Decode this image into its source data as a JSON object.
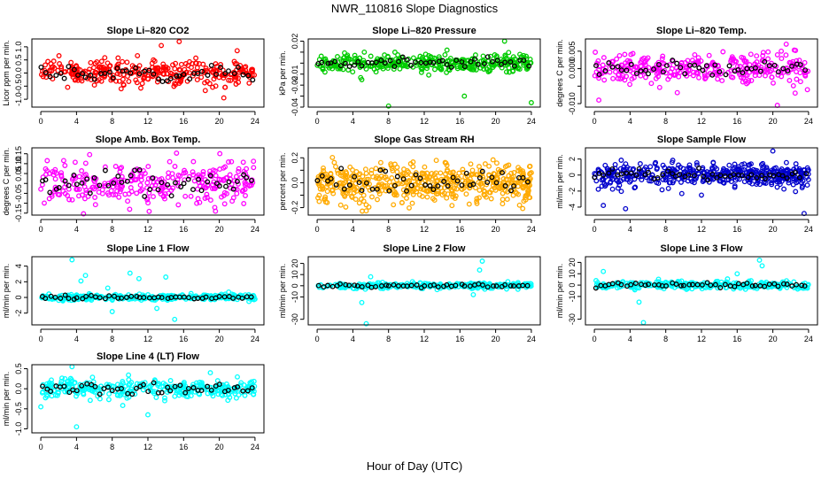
{
  "figure_title": "NWR_110816  Slope Diagnostics",
  "x_axis_title": "Hour of Day (UTC)",
  "overlay_color": "#000000",
  "chart_data": [
    {
      "type": "scatter",
      "title": "Slope Li–820 CO2",
      "ylabel": "Licor ppm per min.",
      "color": "#ff0000",
      "xlim": [
        -1,
        25
      ],
      "ylim": [
        -1.3,
        1.3
      ],
      "xticks": [
        0,
        4,
        8,
        12,
        16,
        20,
        24
      ],
      "yticks": [
        -1.0,
        -0.5,
        0.0,
        0.5,
        1.0
      ],
      "ytick_labels": [
        "-1.0",
        "-0.5",
        "0.0",
        "0.5",
        "1.0"
      ],
      "n_points": 320,
      "spread": 0.32,
      "outliers": [
        [
          13.5,
          1.05
        ],
        [
          15.5,
          1.2
        ],
        [
          20.5,
          -0.95
        ],
        [
          22,
          0.85
        ],
        [
          9,
          -0.6
        ]
      ]
    },
    {
      "type": "scatter",
      "title": "Slope Li–820 Pressure",
      "ylabel": "kPa per min.",
      "color": "#00cc00",
      "xlim": [
        -1,
        25
      ],
      "ylim": [
        -0.04,
        0.022
      ],
      "xticks": [
        0,
        4,
        8,
        12,
        16,
        20,
        24
      ],
      "yticks": [
        -0.04,
        -0.03,
        -0.02,
        -0.01,
        0.0,
        0.01,
        0.02
      ],
      "ytick_labels": [
        "-0.04",
        "",
        "-0.02",
        "-0.01",
        "",
        "",
        "0.02"
      ],
      "n_points": 340,
      "spread": 0.005,
      "outliers": [
        [
          8,
          -0.039
        ],
        [
          16.5,
          -0.03
        ],
        [
          21,
          0.02
        ],
        [
          24,
          -0.036
        ],
        [
          5,
          -0.015
        ]
      ]
    },
    {
      "type": "scatter",
      "title": "Slope Li–820 Temp.",
      "ylabel": "degrees C per min.",
      "color": "#ff00ff",
      "xlim": [
        -1,
        25
      ],
      "ylim": [
        -0.011,
        0.0085
      ],
      "xticks": [
        0,
        4,
        8,
        12,
        16,
        20,
        24
      ],
      "yticks": [
        -0.01,
        -0.005,
        0.0,
        0.005
      ],
      "ytick_labels": [
        "-0.010",
        "",
        "0.000",
        "0.005"
      ],
      "n_points": 300,
      "spread": 0.0028,
      "outliers": [
        [
          20.5,
          -0.0105
        ],
        [
          21.5,
          0.007
        ],
        [
          0.5,
          -0.009
        ],
        [
          22.5,
          -0.007
        ]
      ]
    },
    {
      "type": "scatter",
      "title": "Slope Amb. Box Temp.",
      "ylabel": "degrees C per min.",
      "color": "#ff00ff",
      "xlim": [
        -1,
        25
      ],
      "ylim": [
        -0.16,
        0.18
      ],
      "xticks": [
        0,
        4,
        8,
        12,
        16,
        20,
        24
      ],
      "yticks": [
        -0.15,
        -0.1,
        -0.05,
        0.0,
        0.05,
        0.1,
        0.15
      ],
      "ytick_labels": [
        "-0.15",
        "",
        "-0.05",
        "",
        "0.05",
        "0.10",
        "0.15"
      ],
      "n_points": 300,
      "spread": 0.065,
      "outliers": []
    },
    {
      "type": "scatter",
      "title": "Slope Gas Stream RH",
      "ylabel": "percent per min.",
      "color": "#ffaa00",
      "xlim": [
        -1,
        25
      ],
      "ylim": [
        -0.26,
        0.28
      ],
      "xticks": [
        0,
        4,
        8,
        12,
        16,
        20,
        24
      ],
      "yticks": [
        -0.2,
        -0.1,
        0.0,
        0.1,
        0.2
      ],
      "ytick_labels": [
        "-0.2",
        "",
        "0.0",
        "",
        "0.2"
      ],
      "n_points": 520,
      "spread": 0.1,
      "outliers": []
    },
    {
      "type": "scatter",
      "title": "Slope Sample Flow",
      "ylabel": "ml/min per min.",
      "color": "#0000cc",
      "xlim": [
        -1,
        25
      ],
      "ylim": [
        -5,
        3.4
      ],
      "xticks": [
        0,
        4,
        8,
        12,
        16,
        20,
        24
      ],
      "yticks": [
        -4,
        -2,
        0,
        2
      ],
      "ytick_labels": [
        "-4",
        "-2",
        "0",
        "2"
      ],
      "n_points": 440,
      "spread": 0.9,
      "outliers": [
        [
          1,
          -3.8
        ],
        [
          3.5,
          -4.2
        ],
        [
          20,
          3
        ],
        [
          23.5,
          -4.8
        ],
        [
          12,
          -2.5
        ]
      ]
    },
    {
      "type": "scatter",
      "title": "Slope Line 1 Flow",
      "ylabel": "ml/min per min.",
      "color": "#00ffff",
      "xlim": [
        -1,
        25
      ],
      "ylim": [
        -3.5,
        5.2
      ],
      "xticks": [
        0,
        4,
        8,
        12,
        16,
        20,
        24
      ],
      "yticks": [
        -2,
        0,
        2,
        4
      ],
      "ytick_labels": [
        "-2",
        "0",
        "2",
        "4"
      ],
      "n_points": 300,
      "spread": 0.25,
      "outliers": [
        [
          3.5,
          4.8
        ],
        [
          5,
          2.8
        ],
        [
          10,
          3.1
        ],
        [
          11,
          2.4
        ],
        [
          14,
          2.6
        ],
        [
          15,
          -2.8
        ],
        [
          8,
          -1.8
        ],
        [
          13,
          -1.4
        ],
        [
          4.5,
          2.1
        ],
        [
          7.5,
          1.2
        ]
      ]
    },
    {
      "type": "scatter",
      "title": "Slope Line 2 Flow",
      "ylabel": "ml/min per min.",
      "color": "#00ffff",
      "xlim": [
        -1,
        25
      ],
      "ylim": [
        -35,
        26
      ],
      "xticks": [
        0,
        4,
        8,
        12,
        16,
        20,
        24
      ],
      "yticks": [
        -30,
        -10,
        0,
        10,
        20
      ],
      "ytick_labels": [
        "-30",
        "-10",
        "0",
        "10",
        "20"
      ],
      "n_points": 300,
      "spread": 1.6,
      "outliers": [
        [
          5.5,
          -34
        ],
        [
          18.5,
          22
        ],
        [
          18.2,
          14
        ],
        [
          5,
          -15
        ],
        [
          17.5,
          -8
        ],
        [
          6,
          8
        ]
      ]
    },
    {
      "type": "scatter",
      "title": "Slope Line 3 Flow",
      "ylabel": "ml/min per min.",
      "color": "#00ffff",
      "xlim": [
        -1,
        25
      ],
      "ylim": [
        -35,
        25
      ],
      "xticks": [
        0,
        4,
        8,
        12,
        16,
        20,
        24
      ],
      "yticks": [
        -30,
        -10,
        0,
        10,
        20
      ],
      "ytick_labels": [
        "-30",
        "-10",
        "0",
        "10",
        "20"
      ],
      "n_points": 300,
      "spread": 2.2,
      "outliers": [
        [
          5.5,
          -33
        ],
        [
          18.5,
          22
        ],
        [
          18.8,
          17
        ],
        [
          5,
          -15
        ],
        [
          16,
          10
        ],
        [
          1,
          12
        ]
      ]
    },
    {
      "type": "scatter",
      "title": "Slope Line 4 (LT) Flow",
      "ylabel": "ml/min per min.",
      "color": "#00ffff",
      "xlim": [
        -1,
        25
      ],
      "ylim": [
        -1.1,
        0.6
      ],
      "xticks": [
        0,
        4,
        8,
        12,
        16,
        20,
        24
      ],
      "yticks": [
        -1.0,
        -0.5,
        0.0,
        0.5
      ],
      "ytick_labels": [
        "-1.0",
        "-0.5",
        "0.0",
        "0.5"
      ],
      "n_points": 320,
      "spread": 0.14,
      "outliers": [
        [
          4,
          -0.95
        ],
        [
          12,
          -0.65
        ],
        [
          3.5,
          0.55
        ],
        [
          0,
          -0.45
        ],
        [
          19,
          0.4
        ]
      ]
    }
  ]
}
